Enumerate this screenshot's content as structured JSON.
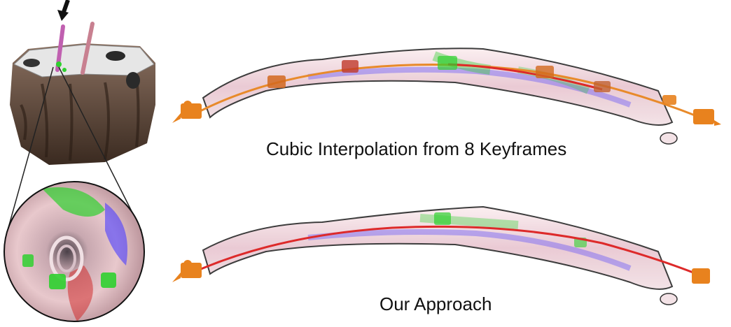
{
  "captions": {
    "top": "Cubic Interpolation from 8 Keyframes",
    "bottom": "Our Approach"
  },
  "colors": {
    "camera": "#e8821e",
    "path_cubic": "#e88a2a",
    "path_ours": "#dd2a2a",
    "keyframe": "#d2691e",
    "highlight_green": "#2fd02f",
    "highlight_blue": "#4a3cff",
    "tissue": "#f0d8dc",
    "bone": "#5a4030"
  },
  "icons": {
    "camera": "camera-icon",
    "keyframe": "keyframe-camera-icon",
    "arrow": "arrow-down-icon"
  }
}
